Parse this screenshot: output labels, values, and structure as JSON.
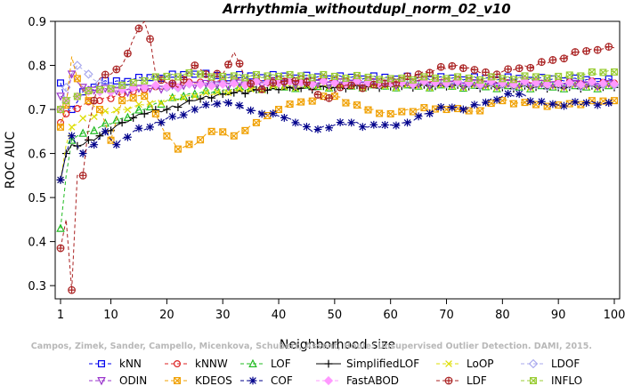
{
  "chart_data": {
    "type": "line",
    "title": "Arrhythmia_withoutdupl_norm_02_v10",
    "xlabel": "Neighborhood size",
    "ylabel": "ROC AUC",
    "xlim": [
      1,
      100
    ],
    "ylim": [
      0.27,
      0.9
    ],
    "xticks": [
      1,
      10,
      20,
      30,
      40,
      50,
      60,
      70,
      80,
      90,
      100
    ],
    "yticks": [
      0.3,
      0.4,
      0.5,
      0.6,
      0.7,
      0.8,
      0.9
    ],
    "grid": false,
    "legend_position": "bottom",
    "watermark": "Campos, Zimek, Sander, Campello, Micenkova, Schubert, Assent, Houle: Unsupervised Outlier Detection. DAMI, 2015.",
    "series": [
      {
        "name": "kNN",
        "color": "#0000ee",
        "marker": "square",
        "dash": "4,3",
        "points": [
          [
            1,
            0.76
          ],
          [
            2,
            0.71
          ],
          [
            3,
            0.7
          ],
          [
            5,
            0.74
          ],
          [
            8,
            0.76
          ],
          [
            12,
            0.765
          ],
          [
            16,
            0.77
          ],
          [
            20,
            0.775
          ],
          [
            25,
            0.78
          ],
          [
            30,
            0.775
          ],
          [
            40,
            0.775
          ],
          [
            50,
            0.772
          ],
          [
            60,
            0.772
          ],
          [
            70,
            0.77
          ],
          [
            80,
            0.77
          ],
          [
            90,
            0.768
          ],
          [
            100,
            0.765
          ]
        ]
      },
      {
        "name": "kNNW",
        "color": "#dd2222",
        "marker": "circle",
        "dash": "4,3",
        "points": [
          [
            1,
            0.67
          ],
          [
            2,
            0.69
          ],
          [
            3,
            0.7
          ],
          [
            5,
            0.71
          ],
          [
            8,
            0.72
          ],
          [
            12,
            0.735
          ],
          [
            16,
            0.745
          ],
          [
            20,
            0.75
          ],
          [
            25,
            0.76
          ],
          [
            30,
            0.765
          ],
          [
            40,
            0.768
          ],
          [
            50,
            0.768
          ],
          [
            60,
            0.766
          ],
          [
            70,
            0.765
          ],
          [
            80,
            0.764
          ],
          [
            90,
            0.762
          ],
          [
            100,
            0.76
          ]
        ]
      },
      {
        "name": "LOF",
        "color": "#22bb22",
        "marker": "triangle",
        "dash": "4,3",
        "points": [
          [
            1,
            0.43
          ],
          [
            2,
            0.55
          ],
          [
            3,
            0.63
          ],
          [
            4,
            0.64
          ],
          [
            6,
            0.65
          ],
          [
            8,
            0.66
          ],
          [
            12,
            0.68
          ],
          [
            16,
            0.7
          ],
          [
            20,
            0.72
          ],
          [
            25,
            0.735
          ],
          [
            30,
            0.745
          ],
          [
            40,
            0.75
          ],
          [
            50,
            0.752
          ],
          [
            60,
            0.752
          ],
          [
            70,
            0.752
          ],
          [
            80,
            0.75
          ],
          [
            90,
            0.75
          ],
          [
            100,
            0.75
          ]
        ]
      },
      {
        "name": "SimplifiedLOF",
        "color": "#000000",
        "marker": "plus",
        "dash": "",
        "points": [
          [
            1,
            0.54
          ],
          [
            2,
            0.6
          ],
          [
            3,
            0.62
          ],
          [
            5,
            0.62
          ],
          [
            8,
            0.64
          ],
          [
            12,
            0.67
          ],
          [
            16,
            0.69
          ],
          [
            20,
            0.7
          ],
          [
            25,
            0.72
          ],
          [
            30,
            0.735
          ],
          [
            40,
            0.745
          ],
          [
            50,
            0.75
          ],
          [
            60,
            0.752
          ],
          [
            70,
            0.752
          ],
          [
            80,
            0.75
          ],
          [
            90,
            0.75
          ],
          [
            100,
            0.75
          ]
        ]
      },
      {
        "name": "LoOP",
        "color": "#dddd00",
        "marker": "x",
        "dash": "4,3",
        "points": [
          [
            1,
            0.54
          ],
          [
            2,
            0.62
          ],
          [
            3,
            0.66
          ],
          [
            5,
            0.68
          ],
          [
            8,
            0.69
          ],
          [
            12,
            0.7
          ],
          [
            16,
            0.71
          ],
          [
            20,
            0.72
          ],
          [
            25,
            0.73
          ],
          [
            30,
            0.74
          ],
          [
            40,
            0.75
          ],
          [
            50,
            0.752
          ],
          [
            60,
            0.752
          ],
          [
            70,
            0.752
          ],
          [
            80,
            0.752
          ],
          [
            90,
            0.752
          ],
          [
            100,
            0.752
          ]
        ]
      },
      {
        "name": "LDOF",
        "color": "#aaaaee",
        "marker": "diamond",
        "dash": "4,3",
        "points": [
          [
            1,
            0.7
          ],
          [
            2,
            0.75
          ],
          [
            3,
            0.78
          ],
          [
            4,
            0.8
          ],
          [
            6,
            0.78
          ],
          [
            8,
            0.76
          ],
          [
            12,
            0.75
          ],
          [
            16,
            0.75
          ],
          [
            20,
            0.75
          ],
          [
            25,
            0.755
          ],
          [
            30,
            0.76
          ],
          [
            40,
            0.76
          ],
          [
            50,
            0.76
          ],
          [
            60,
            0.76
          ],
          [
            70,
            0.758
          ],
          [
            80,
            0.756
          ],
          [
            90,
            0.755
          ],
          [
            100,
            0.755
          ]
        ]
      },
      {
        "name": "ODIN",
        "color": "#9933cc",
        "marker": "triangle-down",
        "dash": "4,3",
        "points": [
          [
            1,
            0.73
          ],
          [
            2,
            0.72
          ],
          [
            3,
            0.78
          ],
          [
            5,
            0.75
          ],
          [
            8,
            0.745
          ],
          [
            12,
            0.74
          ],
          [
            16,
            0.745
          ],
          [
            20,
            0.75
          ],
          [
            25,
            0.755
          ],
          [
            30,
            0.755
          ],
          [
            40,
            0.758
          ],
          [
            50,
            0.758
          ],
          [
            60,
            0.757
          ],
          [
            70,
            0.756
          ],
          [
            80,
            0.755
          ],
          [
            90,
            0.755
          ],
          [
            100,
            0.755
          ]
        ]
      },
      {
        "name": "KDEOS",
        "color": "#f0a000",
        "marker": "square-x",
        "dash": "4,3",
        "points": [
          [
            1,
            0.66
          ],
          [
            2,
            0.71
          ],
          [
            3,
            0.82
          ],
          [
            4,
            0.77
          ],
          [
            6,
            0.72
          ],
          [
            8,
            0.7
          ],
          [
            10,
            0.63
          ],
          [
            12,
            0.72
          ],
          [
            16,
            0.73
          ],
          [
            18,
            0.69
          ],
          [
            20,
            0.64
          ],
          [
            22,
            0.61
          ],
          [
            25,
            0.62
          ],
          [
            28,
            0.65
          ],
          [
            32,
            0.64
          ],
          [
            36,
            0.67
          ],
          [
            40,
            0.7
          ],
          [
            45,
            0.72
          ],
          [
            50,
            0.73
          ],
          [
            55,
            0.7
          ],
          [
            60,
            0.69
          ],
          [
            65,
            0.7
          ],
          [
            70,
            0.7
          ],
          [
            75,
            0.695
          ],
          [
            80,
            0.72
          ],
          [
            85,
            0.71
          ],
          [
            90,
            0.71
          ],
          [
            95,
            0.715
          ],
          [
            100,
            0.72
          ]
        ]
      },
      {
        "name": "COF",
        "color": "#00008b",
        "marker": "asterisk",
        "dash": "4,3",
        "points": [
          [
            1,
            0.54
          ],
          [
            2,
            0.6
          ],
          [
            3,
            0.64
          ],
          [
            5,
            0.6
          ],
          [
            7,
            0.62
          ],
          [
            9,
            0.65
          ],
          [
            11,
            0.62
          ],
          [
            14,
            0.65
          ],
          [
            17,
            0.66
          ],
          [
            20,
            0.68
          ],
          [
            22,
            0.68
          ],
          [
            25,
            0.7
          ],
          [
            28,
            0.71
          ],
          [
            31,
            0.715
          ],
          [
            34,
            0.7
          ],
          [
            37,
            0.69
          ],
          [
            40,
            0.685
          ],
          [
            43,
            0.67
          ],
          [
            46,
            0.65
          ],
          [
            50,
            0.665
          ],
          [
            53,
            0.67
          ],
          [
            56,
            0.66
          ],
          [
            60,
            0.665
          ],
          [
            63,
            0.67
          ],
          [
            66,
            0.69
          ],
          [
            70,
            0.705
          ],
          [
            73,
            0.7
          ],
          [
            76,
            0.71
          ],
          [
            80,
            0.73
          ],
          [
            83,
            0.735
          ],
          [
            86,
            0.715
          ],
          [
            90,
            0.71
          ],
          [
            95,
            0.715
          ],
          [
            100,
            0.71
          ]
        ]
      },
      {
        "name": "FastABOD",
        "color": "#ff99ff",
        "marker": "diamond-filled",
        "dash": "4,3",
        "points": [
          [
            1,
            0.7
          ],
          [
            2,
            0.72
          ],
          [
            3,
            0.73
          ],
          [
            5,
            0.735
          ],
          [
            8,
            0.74
          ],
          [
            12,
            0.745
          ],
          [
            16,
            0.75
          ],
          [
            20,
            0.752
          ],
          [
            25,
            0.755
          ],
          [
            30,
            0.757
          ],
          [
            40,
            0.76
          ],
          [
            50,
            0.76
          ],
          [
            60,
            0.76
          ],
          [
            70,
            0.76
          ],
          [
            80,
            0.76
          ],
          [
            90,
            0.76
          ],
          [
            100,
            0.758
          ]
        ]
      },
      {
        "name": "LDF",
        "color": "#aa2222",
        "marker": "circle-plus",
        "dash": "4,3",
        "points": [
          [
            1,
            0.385
          ],
          [
            2,
            0.45
          ],
          [
            3,
            0.29
          ],
          [
            4,
            0.55
          ],
          [
            5,
            0.55
          ],
          [
            6,
            0.66
          ],
          [
            7,
            0.72
          ],
          [
            8,
            0.77
          ],
          [
            10,
            0.78
          ],
          [
            12,
            0.8
          ],
          [
            14,
            0.86
          ],
          [
            16,
            0.9
          ],
          [
            17,
            0.86
          ],
          [
            18,
            0.78
          ],
          [
            20,
            0.76
          ],
          [
            22,
            0.75
          ],
          [
            25,
            0.8
          ],
          [
            27,
            0.78
          ],
          [
            30,
            0.78
          ],
          [
            32,
            0.83
          ],
          [
            34,
            0.77
          ],
          [
            36,
            0.745
          ],
          [
            40,
            0.76
          ],
          [
            44,
            0.77
          ],
          [
            48,
            0.72
          ],
          [
            52,
            0.755
          ],
          [
            56,
            0.75
          ],
          [
            60,
            0.76
          ],
          [
            64,
            0.775
          ],
          [
            68,
            0.79
          ],
          [
            72,
            0.8
          ],
          [
            75,
            0.79
          ],
          [
            78,
            0.78
          ],
          [
            82,
            0.79
          ],
          [
            86,
            0.8
          ],
          [
            90,
            0.815
          ],
          [
            94,
            0.83
          ],
          [
            97,
            0.835
          ],
          [
            100,
            0.84
          ]
        ]
      },
      {
        "name": "INFLO",
        "color": "#99cc33",
        "marker": "square-x",
        "dash": "4,3",
        "points": [
          [
            1,
            0.7
          ],
          [
            2,
            0.72
          ],
          [
            3,
            0.73
          ],
          [
            5,
            0.735
          ],
          [
            8,
            0.745
          ],
          [
            12,
            0.755
          ],
          [
            16,
            0.765
          ],
          [
            20,
            0.775
          ],
          [
            25,
            0.78
          ],
          [
            30,
            0.775
          ],
          [
            40,
            0.775
          ],
          [
            50,
            0.775
          ],
          [
            60,
            0.77
          ],
          [
            70,
            0.77
          ],
          [
            80,
            0.77
          ],
          [
            90,
            0.775
          ],
          [
            100,
            0.785
          ]
        ]
      }
    ],
    "legend_order": [
      [
        "kNN",
        "kNNW",
        "LOF",
        "SimplifiedLOF",
        "LoOP",
        "LDOF"
      ],
      [
        "ODIN",
        "KDEOS",
        "COF",
        "FastABOD",
        "LDF",
        "INFLO"
      ]
    ]
  }
}
